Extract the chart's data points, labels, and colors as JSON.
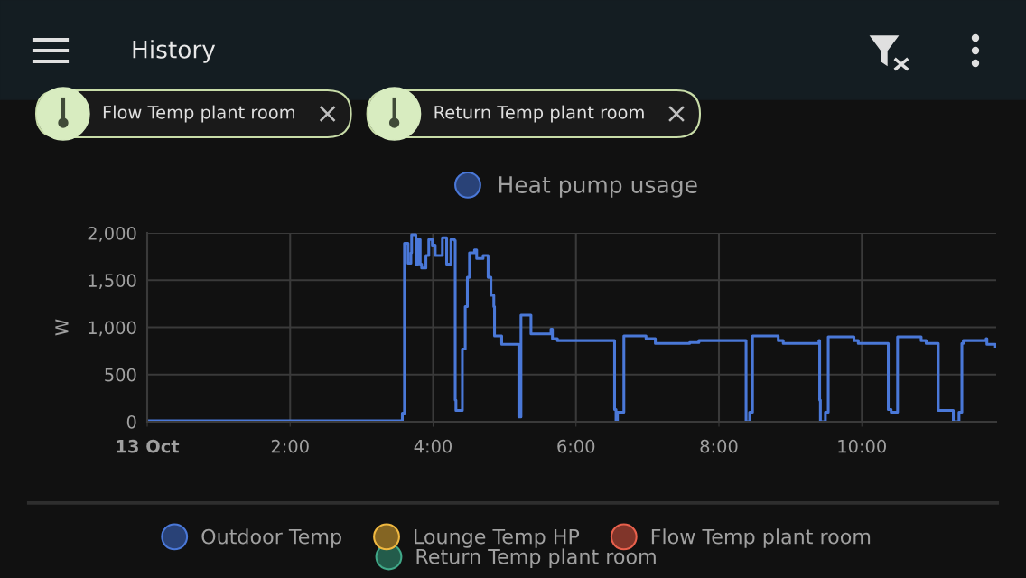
{
  "chart_data": [
    {
      "type": "other",
      "title": "History",
      "annotations": [
        "Flow Temp plant room",
        "Return Temp plant room"
      ]
    },
    {
      "type": "step",
      "xlabel": null,
      "ylabel": "W",
      "legend": "top",
      "grid": true,
      "line_style": "solid",
      "marker": "none",
      "xlim": [
        0,
        11.88
      ],
      "xticks": [
        {
          "value": 0,
          "label": "13 Oct"
        },
        {
          "value": 2,
          "label": "2:00"
        },
        {
          "value": 4,
          "label": "4:00"
        },
        {
          "value": 6,
          "label": "6:00"
        },
        {
          "value": 8,
          "label": "8:00"
        },
        {
          "value": 10,
          "label": "10:00"
        }
      ],
      "ylim": [
        0,
        2000
      ],
      "yticks": [
        0,
        500,
        {
          "value": 1000,
          "label": "1,000"
        },
        {
          "value": 1500,
          "label": "1,500"
        },
        {
          "value": 2000,
          "label": "2,000"
        }
      ],
      "series": [
        {
          "name": "Heat pump usage",
          "color": "#4a78d8",
          "x": [
            0,
            3.57,
            3.6,
            3.65,
            3.69,
            3.7,
            3.76,
            3.79,
            3.82,
            3.84,
            3.9,
            3.94,
            3.99,
            4.03,
            4.13,
            4.19,
            4.25,
            4.3,
            4.31,
            4.32,
            4.41,
            4.45,
            4.48,
            4.51,
            4.58,
            4.61,
            4.7,
            4.77,
            4.81,
            4.85,
            4.86,
            4.96,
            5.2,
            5.23,
            5.37,
            5.65,
            5.67,
            5.74,
            6.54,
            6.56,
            6.58,
            6.67,
            6.98,
            7.11,
            7.59,
            7.72,
            8.38,
            8.43,
            8.47,
            8.83,
            8.9,
            9.4,
            9.41,
            9.42,
            9.49,
            9.53,
            9.89,
            9.95,
            10.37,
            10.41,
            10.5,
            10.83,
            10.9,
            11.07,
            11.28,
            11.36,
            11.4,
            11.42,
            11.74,
            11.75,
            11.87
          ],
          "values": [
            10,
            90,
            1890,
            1680,
            1790,
            1980,
            1670,
            1930,
            1670,
            1630,
            1760,
            1930,
            1870,
            1760,
            1950,
            1670,
            1930,
            1920,
            230,
            120,
            770,
            1220,
            1530,
            1790,
            1820,
            1730,
            1760,
            1530,
            1340,
            1220,
            910,
            820,
            50,
            1130,
            930,
            980,
            880,
            860,
            130,
            0,
            100,
            910,
            880,
            830,
            840,
            860,
            0,
            100,
            910,
            860,
            830,
            860,
            230,
            0,
            100,
            900,
            860,
            830,
            130,
            100,
            900,
            860,
            830,
            120,
            0,
            100,
            830,
            860,
            880,
            820,
            800
          ]
        }
      ]
    },
    {
      "type": "other",
      "legend": "bottom",
      "series": [
        {
          "name": "Outdoor Temp",
          "color": "#4a78d8"
        },
        {
          "name": "Lounge Temp HP",
          "color": "#f0b840"
        },
        {
          "name": "Flow Temp plant room",
          "color": "#e8604c"
        },
        {
          "name": "Return Temp plant room",
          "color": "#40a888"
        }
      ]
    }
  ]
}
